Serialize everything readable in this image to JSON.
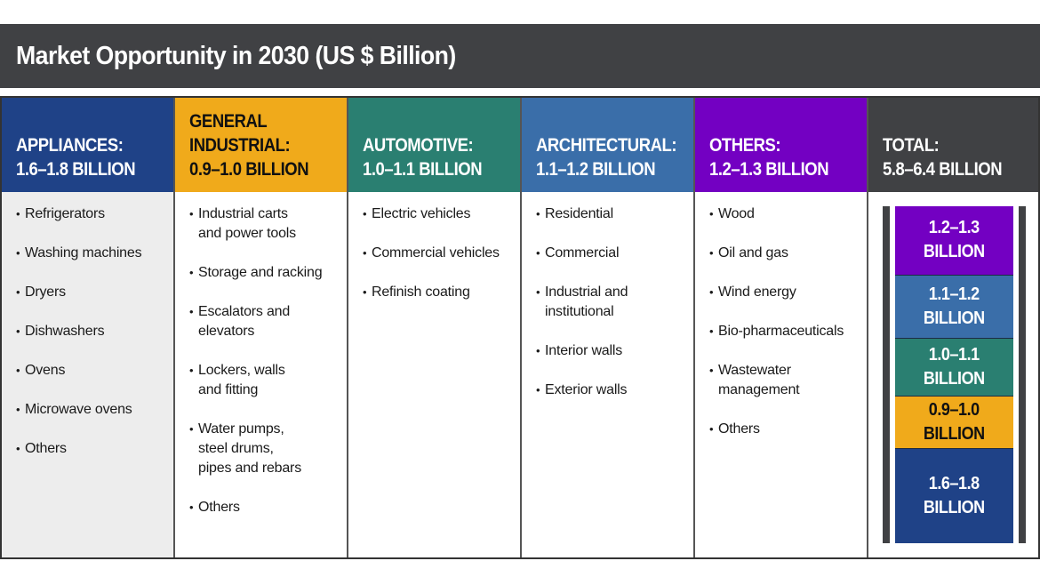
{
  "title": "Market Opportunity in 2030 (US $ Billion)",
  "columns": [
    {
      "key": "appliances",
      "header_lines": [
        "APPLIANCES:",
        "1.6–1.8 BILLION"
      ],
      "color": "#1f4287",
      "items": [
        "Refrigerators",
        "Washing machines",
        "Dryers",
        "Dishwashers",
        "Ovens",
        "Microwave ovens",
        "Others"
      ]
    },
    {
      "key": "general-industrial",
      "header_lines": [
        "GENERAL",
        "INDUSTRIAL:",
        "0.9–1.0 BILLION"
      ],
      "color": "#f0aa1b",
      "items": [
        "Industrial carts\nand power tools",
        "Storage and racking",
        "Escalators and\nelevators",
        "Lockers, walls\nand fitting",
        "Water pumps,\nsteel drums,\npipes and rebars",
        "Others"
      ]
    },
    {
      "key": "automotive",
      "header_lines": [
        "AUTOMOTIVE:",
        "1.0–1.1 BILLION"
      ],
      "color": "#2a7f71",
      "items": [
        "Electric vehicles",
        "Commercial vehicles",
        "Refinish coating"
      ]
    },
    {
      "key": "architectural",
      "header_lines": [
        "ARCHITECTURAL:",
        "1.1–1.2 BILLION"
      ],
      "color": "#3a6ea9",
      "items": [
        "Residential",
        "Commercial",
        "Industrial and\ninstitutional",
        "Interior walls",
        "Exterior walls"
      ]
    },
    {
      "key": "others",
      "header_lines": [
        "OTHERS:",
        "1.2–1.3 BILLION"
      ],
      "color": "#7300c2",
      "items": [
        "Wood",
        "Oil and gas",
        "Wind energy",
        "Bio-pharmaceuticals",
        "Wastewater\nmanagement",
        "Others"
      ]
    }
  ],
  "total": {
    "header_lines": [
      "TOTAL:",
      "5.8–6.4 BILLION"
    ],
    "color": "#404144",
    "stack": [
      {
        "segment": "others",
        "label": "1.2–1.3\nBILLION",
        "low": 1.2,
        "high": 1.3,
        "color": "#7300c2",
        "text_color": "#ffffff"
      },
      {
        "segment": "architectural",
        "label": "1.1–1.2\nBILLION",
        "low": 1.1,
        "high": 1.2,
        "color": "#3a6ea9",
        "text_color": "#ffffff"
      },
      {
        "segment": "automotive",
        "label": "1.0–1.1\nBILLION",
        "low": 1.0,
        "high": 1.1,
        "color": "#2a7f71",
        "text_color": "#ffffff"
      },
      {
        "segment": "general-industrial",
        "label": "0.9–1.0\nBILLION",
        "low": 0.9,
        "high": 1.0,
        "color": "#f0aa1b",
        "text_color": "#111111"
      },
      {
        "segment": "appliances",
        "label": "1.6–1.8\nBILLION",
        "low": 1.6,
        "high": 1.8,
        "color": "#1f4287",
        "text_color": "#ffffff"
      }
    ]
  }
}
